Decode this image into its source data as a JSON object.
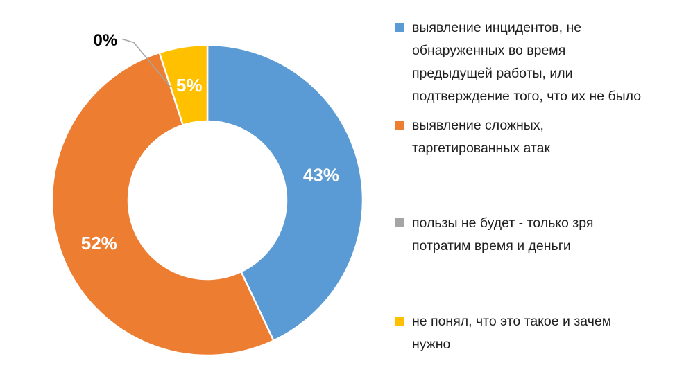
{
  "chart_data": {
    "type": "pie",
    "subtype": "donut",
    "title": "",
    "categories": [
      "выявление инцидентов, не обнаруженных во время предыдущей работы, или подтверждение того, что их не было",
      "выявление сложных, таргетированных атак",
      "пользы не будет - только зря потратим время и деньги",
      "не понял, что это такое и зачем нужно"
    ],
    "values": [
      43,
      52,
      0,
      5
    ],
    "unit": "%",
    "data_labels": [
      "43%",
      "52%",
      "0%",
      "5%"
    ],
    "colors": [
      "#5B9BD5",
      "#ED7D31",
      "#A5A5A5",
      "#FFC000"
    ],
    "start_angle_deg": 0,
    "direction": "clockwise",
    "donut_hole_ratio": 0.51,
    "grid": false,
    "legend_position": "right",
    "label_color_inside": "#FFFFFF",
    "label_color_outside": "#000000",
    "leader_line_color": "#A6A6A6",
    "legend": [
      {
        "color": "#5B9BD5",
        "lines": [
          "выявление инцидентов, не",
          "обнаруженных во время",
          "предыдущей работы, или",
          "подтверждение того, что их не было"
        ]
      },
      {
        "color": "#ED7D31",
        "lines": [
          "выявление сложных,",
          "таргетированных атак"
        ]
      },
      {
        "color": "#A5A5A5",
        "lines": [
          "пользы не будет - только зря",
          "потратим время и деньги"
        ]
      },
      {
        "color": "#FFC000",
        "lines": [
          "не понял, что это такое и зачем",
          "нужно"
        ]
      }
    ]
  }
}
